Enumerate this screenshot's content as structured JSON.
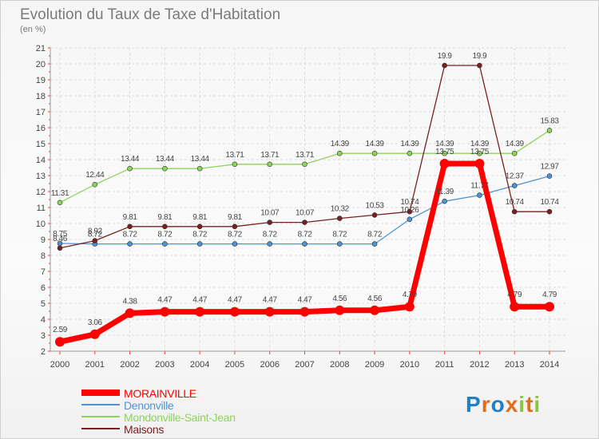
{
  "chart_data": {
    "type": "line",
    "title": "Evolution du Taux de Taxe d'Habitation",
    "subtitle": "(en %)",
    "x": [
      "2000",
      "2001",
      "2002",
      "2003",
      "2004",
      "2005",
      "2006",
      "2007",
      "2008",
      "2009",
      "2010",
      "2011",
      "2012",
      "2013",
      "2014"
    ],
    "ylim": [
      2,
      21
    ],
    "yticks": [
      2,
      3,
      4,
      5,
      6,
      7,
      8,
      9,
      10,
      11,
      12,
      13,
      14,
      15,
      16,
      17,
      18,
      19,
      20,
      21
    ],
    "grid": true,
    "legend_position": "bottom-left",
    "series": [
      {
        "name": "MORAINVILLE",
        "color": "#ff0000",
        "values": [
          2.59,
          3.06,
          4.38,
          4.47,
          4.47,
          4.47,
          4.47,
          4.47,
          4.56,
          4.56,
          4.79,
          13.75,
          13.75,
          4.79,
          4.79
        ],
        "labels": [
          "2.59",
          "3.06",
          "4.38",
          "4.47",
          "4.47",
          "4.47",
          "4.47",
          "4.47",
          "4.56",
          "4.56",
          "4.79",
          "13.75",
          "13.75",
          "4.79",
          "4.79"
        ]
      },
      {
        "name": "Denonville",
        "color": "#4f93d1",
        "values": [
          8.75,
          8.72,
          8.72,
          8.72,
          8.72,
          8.72,
          8.72,
          8.72,
          8.72,
          8.72,
          10.26,
          11.39,
          11.77,
          12.37,
          12.97
        ],
        "labels": [
          "8.75",
          "8.72",
          "8.72",
          "8.72",
          "8.72",
          "8.72",
          "8.72",
          "8.72",
          "8.72",
          "8.72",
          "10.26",
          "11.39",
          "11.77",
          "12.37",
          "12.97"
        ]
      },
      {
        "name": "Mondonville-Saint-Jean",
        "color": "#8ed35a",
        "values": [
          11.31,
          12.44,
          13.44,
          13.44,
          13.44,
          13.71,
          13.71,
          13.71,
          14.39,
          14.39,
          14.39,
          14.39,
          14.39,
          14.39,
          15.83
        ],
        "labels": [
          "11.31",
          "12.44",
          "13.44",
          "13.44",
          "13.44",
          "13.71",
          "13.71",
          "13.71",
          "14.39",
          "14.39",
          "14.39",
          "14.39",
          "14.39",
          "14.39",
          "15.83"
        ]
      },
      {
        "name": "Maisons",
        "color": "#7a2020",
        "values": [
          8.46,
          8.92,
          9.81,
          9.81,
          9.81,
          9.81,
          10.07,
          10.07,
          10.32,
          10.53,
          10.74,
          19.9,
          19.9,
          10.74,
          10.74
        ],
        "labels": [
          "8.46",
          "8.92",
          "9.81",
          "9.81",
          "9.81",
          "9.81",
          "10.07",
          "10.07",
          "10.32",
          "10.53",
          "10.74",
          "19.9",
          "19.9",
          "10.74",
          "10.74"
        ]
      }
    ]
  },
  "logo": {
    "text": "Proxiti",
    "colors": [
      "#1f7fc8",
      "#e36c1a",
      "#1f7fc8",
      "#e36c1a",
      "#8cc63e",
      "#e36c1a",
      "#8cc63e"
    ]
  }
}
